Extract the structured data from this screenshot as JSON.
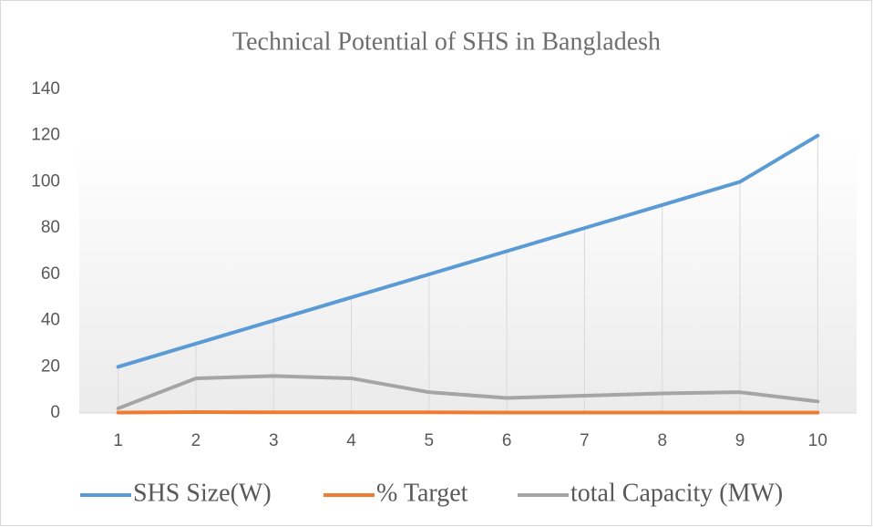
{
  "chart_data": {
    "type": "line",
    "title": "Technical Potential of SHS in Bangladesh",
    "categories": [
      "1",
      "2",
      "3",
      "4",
      "5",
      "6",
      "7",
      "8",
      "9",
      "10"
    ],
    "series": [
      {
        "name": "SHS Size(W)",
        "color": "#5b9bd5",
        "values": [
          20,
          30,
          40,
          50,
          60,
          70,
          80,
          90,
          100,
          120
        ]
      },
      {
        "name": "% Target",
        "color": "#ed7d31",
        "values": [
          0.2,
          0.4,
          0.3,
          0.3,
          0.3,
          0.2,
          0.2,
          0.2,
          0.2,
          0.2
        ]
      },
      {
        "name": "total Capacity (MW)",
        "color": "#a5a5a5",
        "values": [
          2,
          15,
          16,
          15,
          9,
          6.5,
          7.5,
          8.5,
          9,
          5
        ]
      }
    ],
    "ylim": [
      0,
      140
    ],
    "yticks": [
      0,
      20,
      40,
      60,
      80,
      100,
      120,
      140
    ],
    "drop_lines": true,
    "legend": "bottom"
  }
}
